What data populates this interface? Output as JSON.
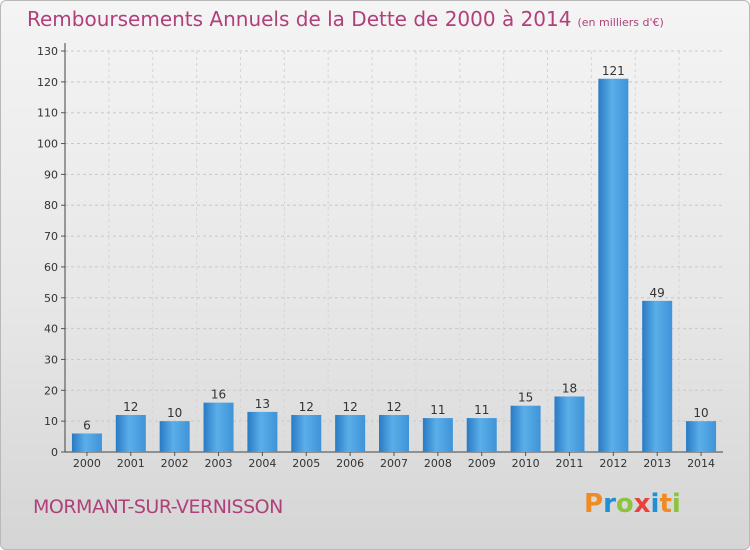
{
  "header": {
    "title": "Remboursements Annuels de la Dette de 2000 à 2014",
    "unit": "(en milliers d'€)"
  },
  "footer": {
    "commune": "MORMANT-SUR-VERNISSON",
    "logo_text": "Proxiti"
  },
  "colors": {
    "title": "#b0407a",
    "bar_light": "#5aafe9",
    "bar_dark": "#2a7ac4",
    "logo_letters": [
      "#f08a23",
      "#1f8fd6",
      "#8cc43e",
      "#e8423c",
      "#1f8fd6",
      "#f08a23",
      "#8cc43e"
    ]
  },
  "chart_data": {
    "type": "bar",
    "title": "Remboursements Annuels de la Dette de 2000 à 2014",
    "subtitle": "(en milliers d'€)",
    "categories": [
      "2000",
      "2001",
      "2002",
      "2003",
      "2004",
      "2005",
      "2006",
      "2007",
      "2008",
      "2009",
      "2010",
      "2011",
      "2012",
      "2013",
      "2014"
    ],
    "values": [
      6,
      12,
      10,
      16,
      13,
      12,
      12,
      12,
      11,
      11,
      15,
      18,
      121,
      49,
      10
    ],
    "ylim": [
      0,
      130
    ],
    "yticks": [
      0,
      10,
      20,
      30,
      40,
      50,
      60,
      70,
      80,
      90,
      100,
      110,
      120,
      130
    ],
    "grid": "horizontal dashed",
    "data_labels": true
  }
}
